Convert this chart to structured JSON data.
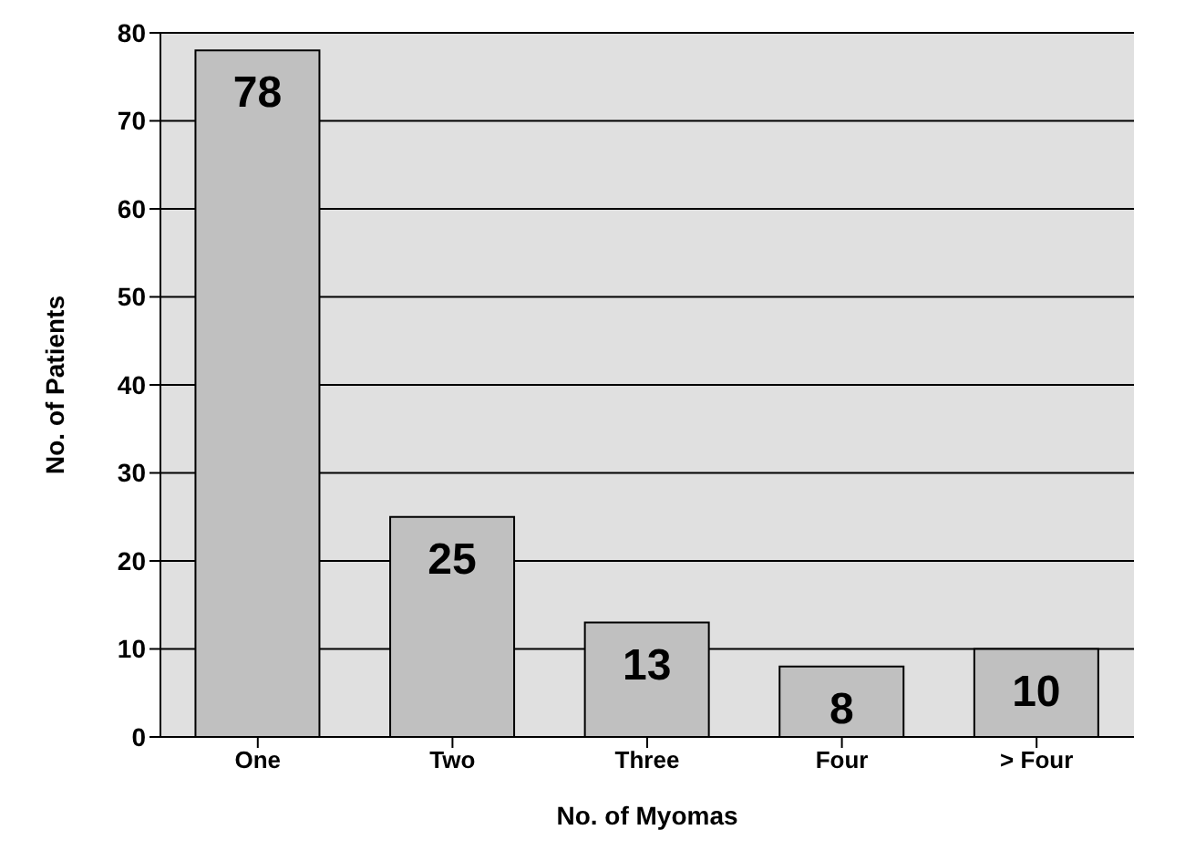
{
  "chart_data": {
    "type": "bar",
    "xlabel": "No.  of  Myomas",
    "ylabel": "No.  of  Patients",
    "categories": [
      "One",
      "Two",
      "Three",
      "Four",
      "> Four"
    ],
    "values": [
      78,
      25,
      13,
      8,
      10
    ],
    "color": "#c0c0c0",
    "ylim": [
      0,
      80
    ],
    "yticks": [
      0,
      10,
      20,
      30,
      40,
      50,
      60,
      70,
      80
    ],
    "grid": "y",
    "data_labels": true
  }
}
